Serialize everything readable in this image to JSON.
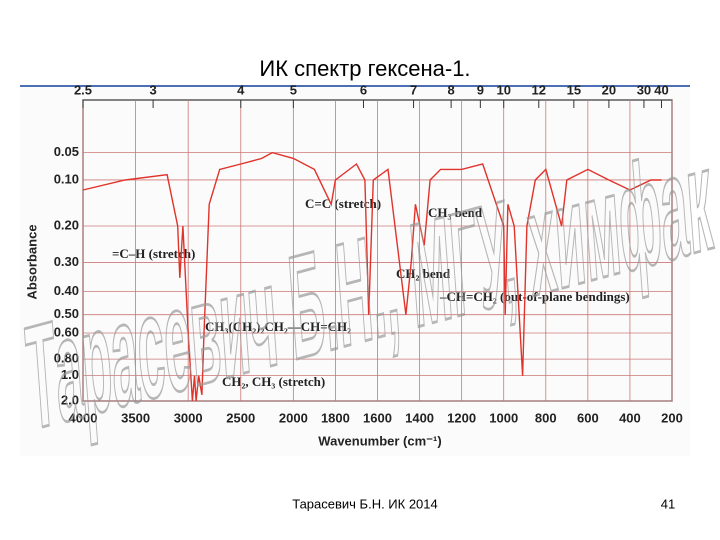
{
  "title": "ИК спектр гексена-1.",
  "footer": "Тарасевич Б.Н.  ИК 2014",
  "page_number": "41",
  "watermark": "Тарасевич Б.Н., МГУ, химфак",
  "chart_data": {
    "type": "line",
    "x_label": "Wavenumber (cm⁻¹)",
    "y_label": "Absorbance",
    "color": "#e0332b",
    "xlim": [
      4000,
      200
    ],
    "scale_change": 2000,
    "xticks": [
      4000,
      3500,
      3000,
      2500,
      2000,
      1800,
      1600,
      1400,
      1200,
      1000,
      800,
      600,
      400,
      200
    ],
    "wavelength_ticks": [
      2.5,
      3,
      4,
      5,
      6,
      7,
      8,
      9,
      10,
      12,
      15,
      20,
      30,
      40
    ],
    "ylim": [
      2.0,
      0
    ],
    "yscale": "transmittance",
    "yticks": [
      0.05,
      {
        "value": 0.1,
        "label": "0.10"
      },
      {
        "value": 0.2,
        "label": "0.20"
      },
      {
        "value": 0.3,
        "label": "0.30"
      },
      {
        "value": 0.4,
        "label": "0.40"
      },
      {
        "value": 0.5,
        "label": "0.50"
      },
      {
        "value": 0.6,
        "label": "0.60"
      },
      {
        "value": 0.8,
        "label": "0.80"
      },
      {
        "value": 1,
        "label": "1.0"
      },
      {
        "value": 2,
        "label": "2.0"
      }
    ],
    "grid": true,
    "x": [
      4000,
      3600,
      3200,
      3100,
      3080,
      3050,
      3000,
      2960,
      2940,
      2925,
      2900,
      2870,
      2850,
      2800,
      2700,
      2500,
      2300,
      2200,
      2000,
      1900,
      1820,
      1800,
      1700,
      1660,
      1642,
      1620,
      1550,
      1465,
      1440,
      1420,
      1378,
      1350,
      1300,
      1200,
      1100,
      1000,
      993,
      980,
      950,
      910,
      890,
      850,
      800,
      725,
      700,
      600,
      500,
      400,
      300,
      250
    ],
    "values": [
      0.12,
      0.1,
      0.09,
      0.2,
      0.35,
      0.2,
      0.6,
      2.0,
      1.0,
      2.0,
      1.0,
      1.5,
      0.6,
      0.15,
      0.08,
      0.07,
      0.06,
      0.05,
      0.06,
      0.08,
      0.15,
      0.1,
      0.07,
      0.1,
      0.5,
      0.1,
      0.08,
      0.5,
      0.3,
      0.15,
      0.25,
      0.1,
      0.08,
      0.08,
      0.07,
      0.2,
      0.5,
      0.15,
      0.2,
      1.0,
      0.2,
      0.1,
      0.08,
      0.2,
      0.1,
      0.08,
      0.1,
      0.12,
      0.1,
      0.1
    ],
    "annotations": [
      "C=C (stretch)",
      "CH₃ bend",
      "=C–H (stretch)",
      "CH₂ bend",
      "–CH=CH₂ (out-of-plane bendings)",
      "CH₃(CH₂)₂CH₂—CH=CH₂",
      "CH₂, CH₃ (stretch)"
    ]
  }
}
